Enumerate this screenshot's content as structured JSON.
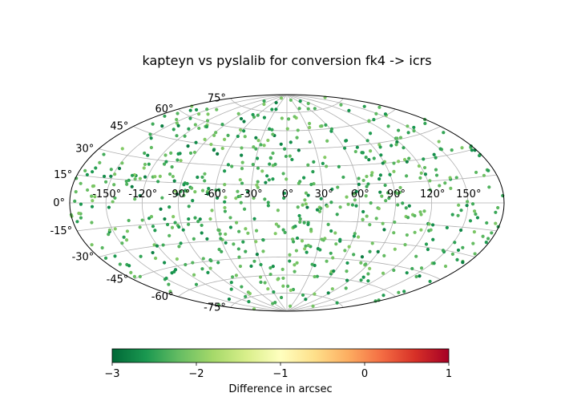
{
  "chart_data": {
    "type": "scatter",
    "projection": "aitoff",
    "title": "kapteyn vs pyslalib for conversion fk4 -> icrs",
    "x_tick_labels": [
      "-150°",
      "-120°",
      "-90°",
      "-60°",
      "-30°",
      "0°",
      "30°",
      "60°",
      "90°",
      "120°",
      "150°"
    ],
    "x_tick_values": [
      -150,
      -120,
      -90,
      -60,
      -30,
      0,
      30,
      60,
      90,
      120,
      150
    ],
    "y_tick_labels": [
      "-75°",
      "-60°",
      "-45°",
      "-30°",
      "-15°",
      "0°",
      "15°",
      "30°",
      "45°",
      "60°",
      "75°"
    ],
    "y_tick_values": [
      -75,
      -60,
      -45,
      -30,
      -15,
      0,
      15,
      30,
      45,
      60,
      75
    ],
    "xlim": [
      -180,
      180
    ],
    "ylim": [
      -90,
      90
    ],
    "grid": true,
    "colorbar": {
      "label": "Difference in arcsec",
      "orientation": "horizontal",
      "placement": "bottom",
      "range": [
        -3,
        1
      ],
      "tick_values": [
        -3,
        -2,
        -1,
        0,
        1
      ],
      "tick_labels": [
        "−3",
        "−2",
        "−1",
        "0",
        "1"
      ],
      "colormap": "RdYlGn_r",
      "colors": [
        "#006837",
        "#1a9850",
        "#66bd63",
        "#a6d96a",
        "#d9ef8b",
        "#ffffbf",
        "#fee08b",
        "#fdae61",
        "#f46d43",
        "#d73027",
        "#a50026"
      ]
    },
    "points": {
      "count": 700,
      "longitude_range": [
        -180,
        180
      ],
      "latitude_range": [
        -90,
        90
      ],
      "value_range": [
        -3.0,
        -2.0
      ],
      "note_values": "differences cluster between about -3 and -2 arcsec"
    }
  }
}
